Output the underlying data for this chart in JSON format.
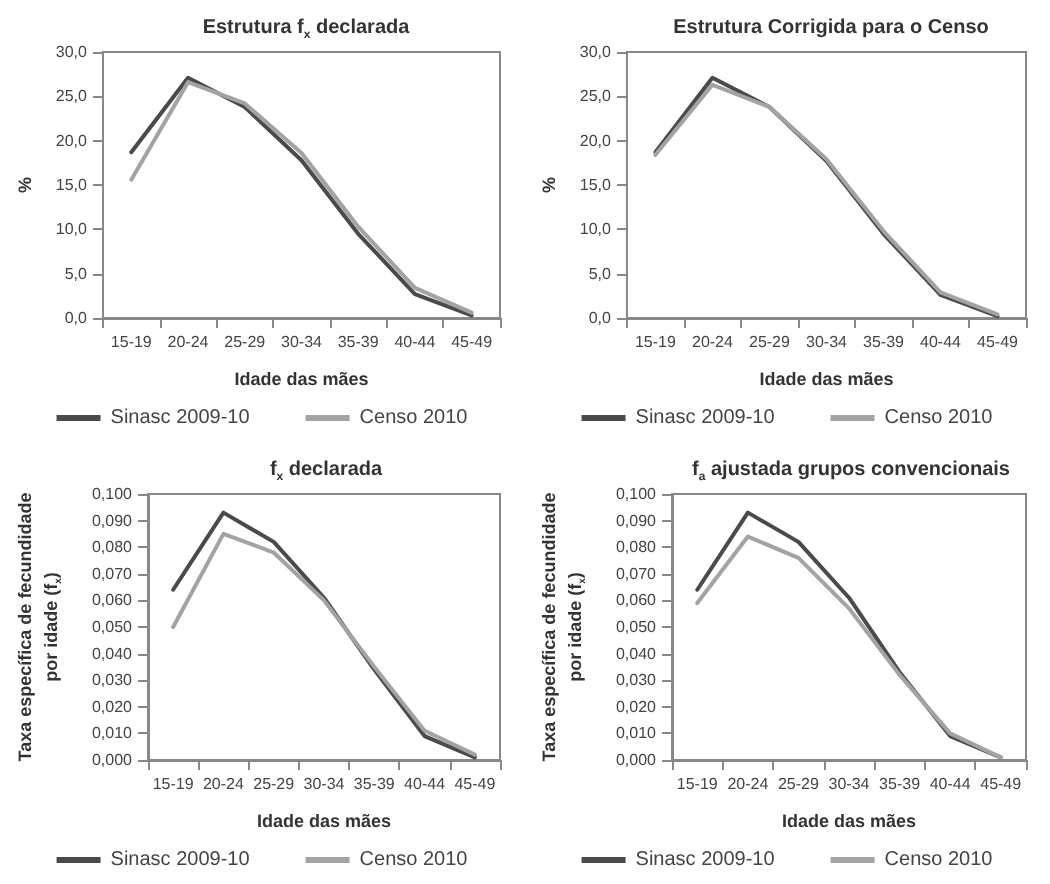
{
  "chart_data": [
    {
      "type": "line",
      "title": "Estrutura f$_{x}$ declarada",
      "xlabel": "Idade das mães",
      "ylabel": "%",
      "categories": [
        "15-19",
        "20-24",
        "25-29",
        "30-34",
        "35-39",
        "40-44",
        "45-49"
      ],
      "series": [
        {
          "name": "Sinasc 2009-10",
          "color": "#4a4a4a",
          "values": [
            18.7,
            27.1,
            23.8,
            17.8,
            9.5,
            2.7,
            0.3
          ]
        },
        {
          "name": "Censo 2010",
          "color": "#a3a3a3",
          "values": [
            15.6,
            26.6,
            24.2,
            18.6,
            10.3,
            3.4,
            0.6
          ]
        }
      ],
      "ylim": [
        0,
        30
      ],
      "yticks": [
        {
          "value": 0,
          "label": "0,0"
        },
        {
          "value": 5,
          "label": "5,0"
        },
        {
          "value": 10,
          "label": "10,0"
        },
        {
          "value": 15,
          "label": "15,0"
        },
        {
          "value": 20,
          "label": "20,0"
        },
        {
          "value": 25,
          "label": "25,0"
        },
        {
          "value": 30,
          "label": "30,0"
        }
      ],
      "grid": false,
      "legend": "bottom",
      "marker": "none",
      "line_style": "solid"
    },
    {
      "type": "line",
      "title": "Estrutura Corrigida para o Censo",
      "xlabel": "Idade das mães",
      "ylabel": "%",
      "categories": [
        "15-19",
        "20-24",
        "25-29",
        "30-34",
        "35-39",
        "40-44",
        "45-49"
      ],
      "series": [
        {
          "name": "Sinasc 2009-10",
          "color": "#4a4a4a",
          "values": [
            18.7,
            27.1,
            23.8,
            17.7,
            9.5,
            2.6,
            0.2
          ]
        },
        {
          "name": "Censo 2010",
          "color": "#a3a3a3",
          "values": [
            18.4,
            26.3,
            23.8,
            17.9,
            9.8,
            2.9,
            0.4
          ]
        }
      ],
      "ylim": [
        0,
        30
      ],
      "yticks": [
        {
          "value": 0,
          "label": "0,0"
        },
        {
          "value": 5,
          "label": "5,0"
        },
        {
          "value": 10,
          "label": "10,0"
        },
        {
          "value": 15,
          "label": "15,0"
        },
        {
          "value": 20,
          "label": "20,0"
        },
        {
          "value": 25,
          "label": "25,0"
        },
        {
          "value": 30,
          "label": "30,0"
        }
      ],
      "grid": false,
      "legend": "bottom",
      "marker": "none",
      "line_style": "solid"
    },
    {
      "type": "line",
      "title": "f$_{x}$ declarada",
      "xlabel": "Idade das mães",
      "ylabel": "Taxa específica de fecundidade\npor idade (f$_{x}$)",
      "categories": [
        "15-19",
        "20-24",
        "25-29",
        "30-34",
        "35-39",
        "40-44",
        "45-49"
      ],
      "series": [
        {
          "name": "Sinasc 2009-10",
          "color": "#4a4a4a",
          "values": [
            0.064,
            0.093,
            0.082,
            0.061,
            0.034,
            0.009,
            0.001
          ]
        },
        {
          "name": "Censo 2010",
          "color": "#a3a3a3",
          "values": [
            0.05,
            0.085,
            0.078,
            0.06,
            0.035,
            0.011,
            0.002
          ]
        }
      ],
      "ylim": [
        0,
        0.1
      ],
      "yticks": [
        {
          "value": 0,
          "label": "0,000"
        },
        {
          "value": 0.01,
          "label": "0,010"
        },
        {
          "value": 0.02,
          "label": "0,020"
        },
        {
          "value": 0.03,
          "label": "0,030"
        },
        {
          "value": 0.04,
          "label": "0,040"
        },
        {
          "value": 0.05,
          "label": "0,050"
        },
        {
          "value": 0.06,
          "label": "0,060"
        },
        {
          "value": 0.07,
          "label": "0,070"
        },
        {
          "value": 0.08,
          "label": "0,080"
        },
        {
          "value": 0.09,
          "label": "0,090"
        },
        {
          "value": 0.1,
          "label": "0,100"
        }
      ],
      "grid": false,
      "legend": "bottom",
      "marker": "none",
      "line_style": "solid"
    },
    {
      "type": "line",
      "title": "f$_{a}$ ajustada grupos convencionais",
      "xlabel": "Idade das mães",
      "ylabel": "Taxa específica de fecundidade\npor idade (f$_{x}$)",
      "categories": [
        "15-19",
        "20-24",
        "25-29",
        "30-34",
        "35-39",
        "40-44",
        "45-49"
      ],
      "series": [
        {
          "name": "Sinasc 2009-10",
          "color": "#4a4a4a",
          "values": [
            0.064,
            0.093,
            0.082,
            0.061,
            0.033,
            0.009,
            0.001
          ]
        },
        {
          "name": "Censo 2010",
          "color": "#a3a3a3",
          "values": [
            0.059,
            0.084,
            0.076,
            0.057,
            0.032,
            0.01,
            0.001
          ]
        }
      ],
      "ylim": [
        0,
        0.1
      ],
      "yticks": [
        {
          "value": 0,
          "label": "0,000"
        },
        {
          "value": 0.01,
          "label": "0,010"
        },
        {
          "value": 0.02,
          "label": "0,020"
        },
        {
          "value": 0.03,
          "label": "0,030"
        },
        {
          "value": 0.04,
          "label": "0,040"
        },
        {
          "value": 0.05,
          "label": "0,050"
        },
        {
          "value": 0.06,
          "label": "0,060"
        },
        {
          "value": 0.07,
          "label": "0,070"
        },
        {
          "value": 0.08,
          "label": "0,080"
        },
        {
          "value": 0.09,
          "label": "0,090"
        },
        {
          "value": 0.1,
          "label": "0,100"
        }
      ],
      "grid": false,
      "legend": "bottom",
      "marker": "none",
      "line_style": "solid"
    }
  ]
}
